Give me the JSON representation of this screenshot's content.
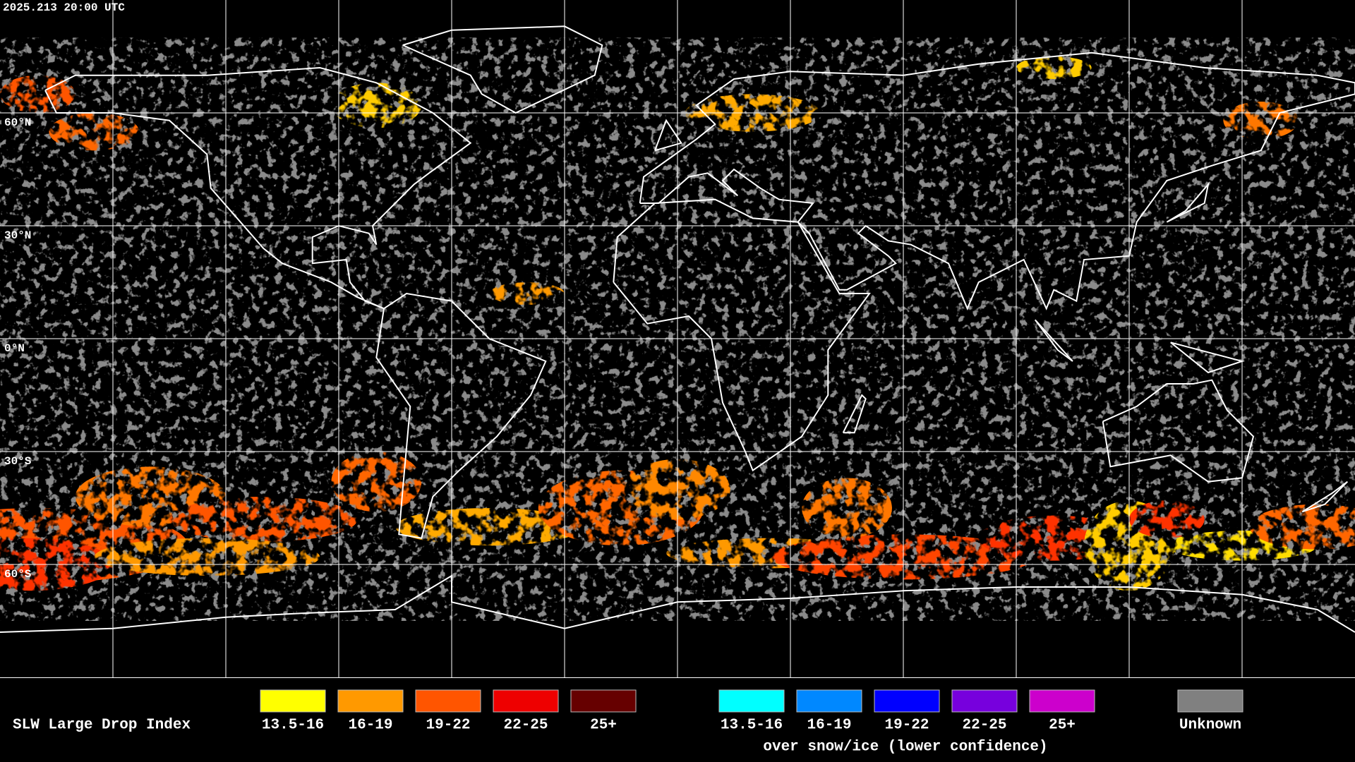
{
  "header": {
    "timestamp": "2025.213 20:00 UTC"
  },
  "map": {
    "latitude_labels": [
      "60°N",
      "30°N",
      "0°N",
      "30°S",
      "60°S"
    ]
  },
  "legend": {
    "title": "SLW Large Drop Index",
    "items": [
      {
        "label": "13.5-16",
        "color": "#ffff00"
      },
      {
        "label": "16-19",
        "color": "#ff9900"
      },
      {
        "label": "19-22",
        "color": "#ff5500"
      },
      {
        "label": "22-25",
        "color": "#ee0000"
      },
      {
        "label": "25+",
        "color": "#660000"
      }
    ],
    "snow_ice_items": [
      {
        "label": "13.5-16",
        "color": "#00ffff"
      },
      {
        "label": "16-19",
        "color": "#0088ff"
      },
      {
        "label": "19-22",
        "color": "#0000ff"
      },
      {
        "label": "22-25",
        "color": "#7700dd"
      },
      {
        "label": "25+",
        "color": "#cc00cc"
      }
    ],
    "snow_ice_caption": "over snow/ice (lower confidence)",
    "unknown": {
      "label": "Unknown",
      "color": "#808080"
    }
  }
}
